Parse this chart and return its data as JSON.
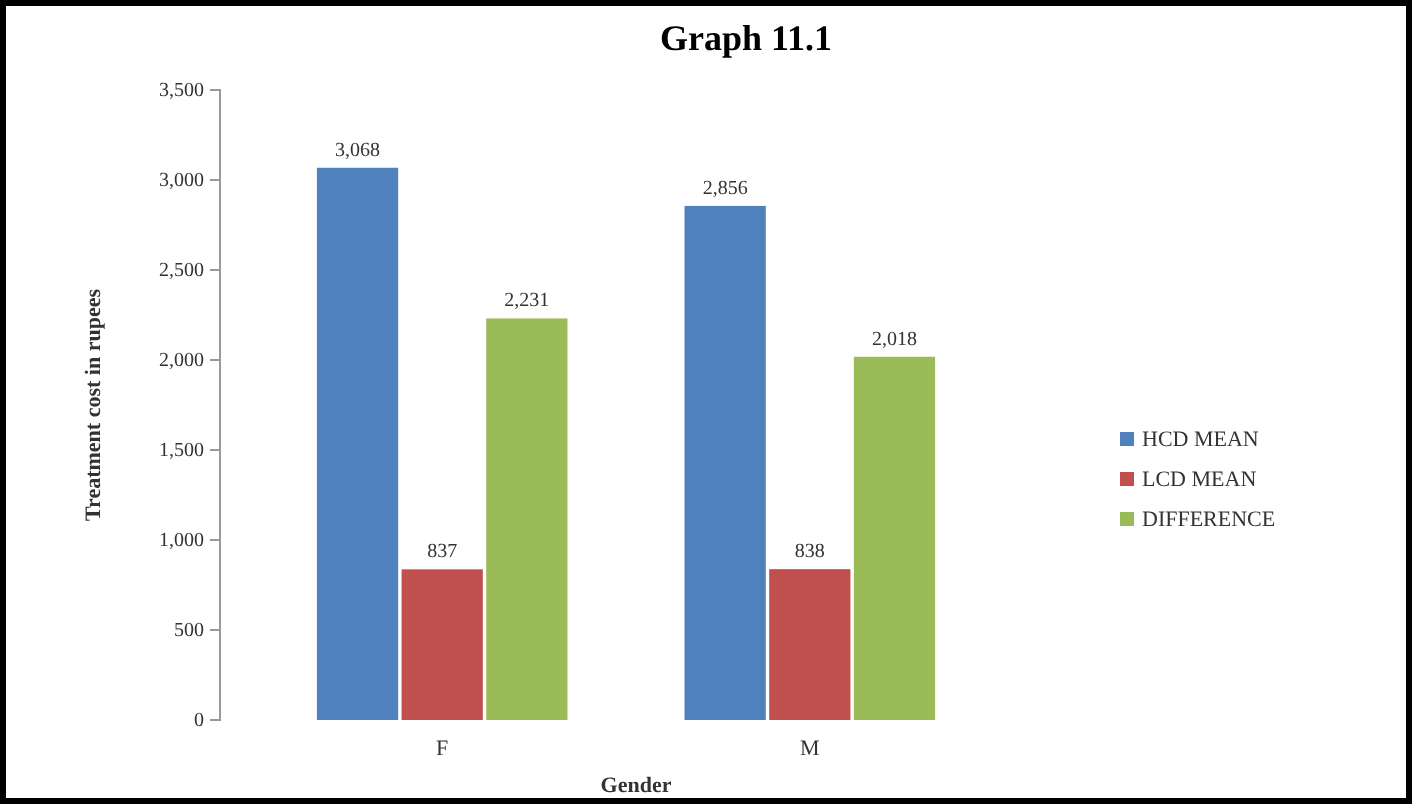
{
  "chart_data": {
    "type": "bar",
    "title": "Graph 11.1",
    "xlabel": "Gender",
    "ylabel": "Treatment cost in rupees",
    "categories": [
      "F",
      "M"
    ],
    "series": [
      {
        "name": "HCD MEAN",
        "color": "#4f81bd",
        "values": [
          3068,
          2856
        ],
        "value_labels": [
          "3,068",
          "2,856"
        ]
      },
      {
        "name": "LCD MEAN",
        "color": "#c0504d",
        "values": [
          837,
          838
        ],
        "value_labels": [
          "837",
          "838"
        ]
      },
      {
        "name": "DIFFERENCE",
        "color": "#9bbb59",
        "values": [
          2231,
          2018
        ],
        "value_labels": [
          "2,231",
          "2,018"
        ]
      }
    ],
    "ylim": [
      0,
      3500
    ],
    "yticks": [
      0,
      500,
      {
        "value": 1000,
        "label": "1,000"
      },
      {
        "value": 1500,
        "label": "1,500"
      },
      {
        "value": 2000,
        "label": "2,000"
      },
      {
        "value": 2500,
        "label": "2,500"
      },
      {
        "value": 3000,
        "label": "3,000"
      },
      {
        "value": 3500,
        "label": "3,500"
      }
    ],
    "legend": "right"
  }
}
